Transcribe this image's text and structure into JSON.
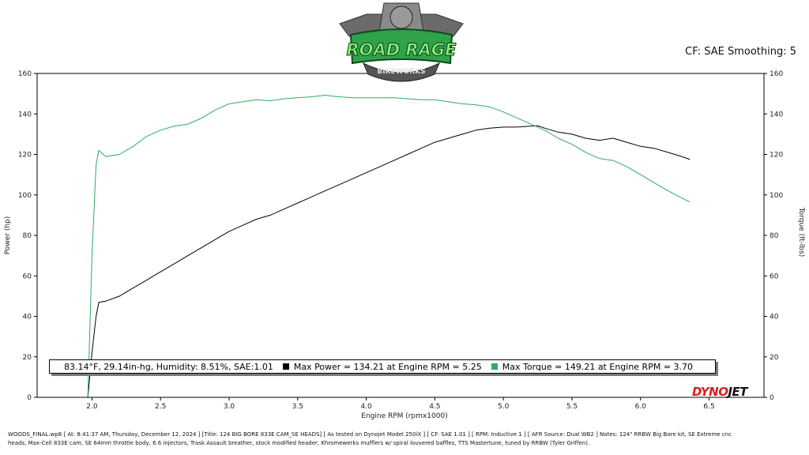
{
  "logo": {
    "line1": "ROAD RAGE",
    "line2": "BIKEWORKS"
  },
  "brand": {
    "dyno": "DYNO",
    "jet": "JET"
  },
  "header": {
    "info": "CF: SAE  Smoothing: 5"
  },
  "legend": {
    "conditions": "83.14°F, 29.14in-hg, Humidity: 8.51%, SAE:1.01",
    "power": "Max Power = 134.21 at Engine RPM = 5.25",
    "torque": "Max Torque = 149.21 at Engine RPM = 3.70"
  },
  "footer": {
    "line1": "WOODS_FINAL.wp8 [ At:  8:41:37 AM, Thursday, December 12, 2024 ] [Title: 124 BIG BORE 833E CAM_SE HEADS]  [ As tested on Dynojet Model 250iX ] [ CF: SAE 1.01 ] [ RPM: Inductive 1 ] [ AFR Source: Dual WB2 ] Notes: 124\" RRBW Big Bore kit, SE Extreme cnc",
    "line2": "heads, Max-Cell 833E cam, SE 64mm throttle body, 6.6 injectors, Trask Assault breather, stock modified header, Khromewerks mufflers w/ spiral louvered baffles, TTS Mastertune, tuned by RRBW (Tyler Griffen)."
  },
  "chart_data": {
    "type": "line",
    "xlabel": "Engine RPM (rpmx1000)",
    "ylabel_left": "Power (hp)",
    "ylabel_right": "Torque (ft-lbs)",
    "xlim": [
      1.6,
      6.9
    ],
    "ylim": [
      0,
      160
    ],
    "xticks": [
      "2.0",
      "2.5",
      "3.0",
      "3.5",
      "4.0",
      "4.5",
      "5.0",
      "5.5",
      "6.0",
      "6.5"
    ],
    "yticks": [
      "0",
      "20",
      "40",
      "60",
      "80",
      "100",
      "120",
      "140",
      "160"
    ],
    "grid": false,
    "series": [
      {
        "name": "Power",
        "axis": "left",
        "color": "#000000",
        "x": [
          1.97,
          2.0,
          2.03,
          2.05,
          2.1,
          2.2,
          2.3,
          2.4,
          2.5,
          2.6,
          2.7,
          2.8,
          2.9,
          3.0,
          3.1,
          3.2,
          3.3,
          3.4,
          3.5,
          3.6,
          3.7,
          3.8,
          3.9,
          4.0,
          4.1,
          4.2,
          4.3,
          4.4,
          4.5,
          4.6,
          4.7,
          4.8,
          4.9,
          5.0,
          5.1,
          5.2,
          5.25,
          5.3,
          5.4,
          5.5,
          5.6,
          5.7,
          5.8,
          5.9,
          6.0,
          6.1,
          6.2,
          6.3,
          6.36
        ],
        "y": [
          0,
          22,
          40,
          47,
          47.5,
          50,
          54,
          58,
          62,
          66,
          70,
          74,
          78,
          82,
          85,
          88,
          90,
          93,
          96,
          99,
          102,
          105,
          108,
          111,
          114,
          117,
          120,
          123,
          126,
          128,
          130,
          132,
          133,
          133.5,
          133.5,
          134,
          134.21,
          133,
          131,
          130,
          128,
          127,
          128,
          126,
          124,
          123,
          121,
          119,
          117.5
        ]
      },
      {
        "name": "Torque",
        "axis": "left",
        "color": "#2eab5f",
        "x": [
          1.97,
          2.0,
          2.03,
          2.05,
          2.1,
          2.2,
          2.3,
          2.4,
          2.5,
          2.6,
          2.7,
          2.8,
          2.9,
          3.0,
          3.1,
          3.2,
          3.3,
          3.4,
          3.5,
          3.6,
          3.7,
          3.8,
          3.9,
          4.0,
          4.1,
          4.2,
          4.3,
          4.4,
          4.5,
          4.6,
          4.7,
          4.8,
          4.9,
          5.0,
          5.1,
          5.2,
          5.3,
          5.4,
          5.5,
          5.6,
          5.7,
          5.8,
          5.9,
          6.0,
          6.1,
          6.2,
          6.3,
          6.36
        ],
        "y": [
          0,
          70,
          115,
          122,
          119,
          120,
          124,
          129,
          132,
          134,
          135,
          138,
          142,
          145,
          146,
          147,
          146.5,
          147.5,
          148,
          148.5,
          149.21,
          148.5,
          148,
          148,
          148,
          148,
          147.5,
          147,
          147,
          146,
          145,
          144.5,
          143.5,
          141,
          138,
          135,
          132,
          128,
          125,
          121,
          118,
          117,
          114,
          110,
          106,
          102,
          98.5,
          96.5
        ]
      }
    ]
  }
}
